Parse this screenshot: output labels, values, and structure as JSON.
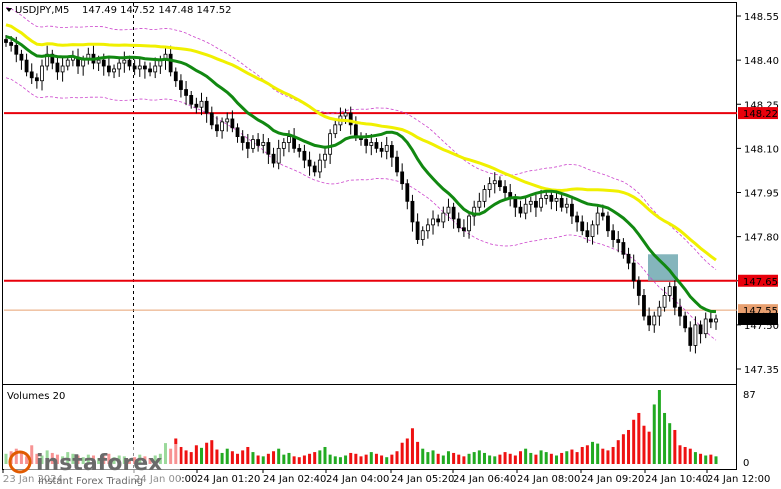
{
  "header": {
    "symbol": "USDJPY,M5",
    "ohlc": "147.49 147.52 147.48 147.52"
  },
  "volume_panel": {
    "title": "Volumes 20",
    "max_label": "87",
    "zero_label": "0"
  },
  "watermark": {
    "brand": "instaforex",
    "tagline": "Instant Forex Trading"
  },
  "colors": {
    "bull": "#1a7a1a",
    "bear": "#000000",
    "ma_fast": "#118811",
    "ma_slow": "#f0f000",
    "envelope": "#cc44cc",
    "level_line": "#e8000b",
    "highlight_box": "#6fa8b0",
    "volume_up": "#22aa22",
    "volume_down": "#ee1111",
    "current_price_tag": "#000000"
  },
  "chart_data": {
    "type": "candlestick",
    "symbol": "USDJPY",
    "timeframe": "M5",
    "y_axis": {
      "ticks": [
        "148.55",
        "148.40",
        "148.25",
        "148.10",
        "147.95",
        "147.80",
        "147.65",
        "147.50",
        "147.35"
      ],
      "range": [
        147.3,
        148.6
      ]
    },
    "x_axis": {
      "ticks": [
        "23 Jan 2024",
        "24 Jan 00:00",
        "24 Jan 01:20",
        "24 Jan 02:40",
        "24 Jan 04:00",
        "24 Jan 05:20",
        "24 Jan 06:40",
        "24 Jan 08:00",
        "24 Jan 09:20",
        "24 Jan 10:40",
        "24 Jan 12:00"
      ]
    },
    "horizontal_levels": [
      {
        "label": "148.22",
        "value": 148.22,
        "color": "#e8000b"
      },
      {
        "label": "147.65",
        "value": 147.65,
        "color": "#e8000b"
      },
      {
        "label": "147.55",
        "value": 147.55,
        "color": "#e8a070"
      }
    ],
    "current_price": {
      "label": "147.52",
      "value": 147.52
    },
    "highlight_zone": {
      "from": 147.65,
      "to": 147.74
    },
    "closes": [
      148.46,
      148.45,
      148.42,
      148.4,
      148.36,
      148.34,
      148.33,
      148.38,
      148.42,
      148.39,
      148.36,
      148.38,
      148.4,
      148.41,
      148.38,
      148.4,
      148.42,
      148.39,
      148.4,
      148.38,
      148.36,
      148.37,
      148.39,
      148.4,
      148.38,
      148.37,
      148.38,
      148.37,
      148.36,
      148.38,
      148.4,
      148.42,
      148.36,
      148.33,
      148.3,
      148.28,
      148.25,
      148.24,
      148.26,
      148.22,
      148.18,
      148.16,
      148.19,
      148.2,
      148.17,
      148.14,
      148.12,
      148.1,
      148.13,
      148.11,
      148.12,
      148.08,
      148.05,
      148.1,
      148.12,
      148.14,
      148.1,
      148.09,
      148.06,
      148.04,
      148.02,
      148.06,
      148.08,
      148.15,
      148.18,
      148.21,
      148.22,
      148.18,
      148.14,
      148.13,
      148.11,
      148.12,
      148.1,
      148.09,
      148.11,
      148.07,
      148.02,
      147.98,
      147.92,
      147.85,
      147.79,
      147.82,
      147.84,
      147.86,
      147.85,
      147.88,
      147.9,
      147.86,
      147.83,
      147.82,
      147.87,
      147.9,
      147.92,
      147.96,
      147.98,
      147.99,
      147.97,
      147.95,
      147.93,
      147.9,
      147.88,
      147.91,
      147.92,
      147.9,
      147.93,
      147.94,
      147.92,
      147.93,
      147.9,
      147.91,
      147.87,
      147.85,
      147.82,
      147.8,
      147.84,
      147.88,
      147.87,
      147.82,
      147.79,
      147.78,
      147.74,
      147.71,
      147.65,
      147.6,
      147.53,
      147.5,
      147.53,
      147.56,
      147.6,
      147.63,
      147.56,
      147.53,
      147.49,
      147.43,
      147.5,
      147.47,
      147.52,
      147.51,
      147.52
    ],
    "volumes": [
      12,
      15,
      18,
      14,
      9,
      22,
      12,
      10,
      16,
      13,
      11,
      9,
      14,
      12,
      10,
      8,
      11,
      10,
      7,
      9,
      12,
      8,
      10,
      9,
      6,
      8,
      11,
      9,
      7,
      10,
      12,
      24,
      18,
      30,
      20,
      16,
      14,
      22,
      19,
      25,
      28,
      17,
      13,
      18,
      15,
      12,
      16,
      20,
      14,
      10,
      9,
      12,
      15,
      18,
      11,
      13,
      9,
      8,
      10,
      12,
      14,
      16,
      20,
      11,
      9,
      8,
      10,
      13,
      12,
      9,
      11,
      14,
      12,
      10,
      8,
      11,
      15,
      25,
      30,
      42,
      26,
      18,
      14,
      16,
      12,
      10,
      15,
      13,
      11,
      9,
      12,
      14,
      16,
      13,
      10,
      9,
      11,
      14,
      12,
      10,
      15,
      18,
      13,
      11,
      16,
      14,
      12,
      10,
      13,
      15,
      17,
      14,
      20,
      22,
      26,
      24,
      18,
      16,
      20,
      28,
      35,
      40,
      52,
      60,
      45,
      38,
      70,
      87,
      60,
      48,
      40,
      22,
      20,
      18,
      14,
      12,
      10,
      11,
      9
    ]
  }
}
